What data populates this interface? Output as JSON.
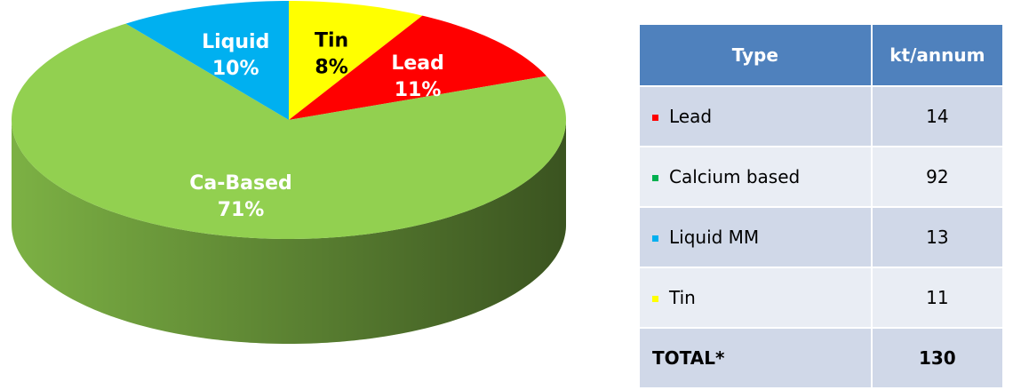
{
  "chart_data": {
    "type": "pie",
    "categories": [
      "Tin",
      "Lead",
      "Ca-Based",
      "Liquid"
    ],
    "values": [
      8,
      11,
      71,
      10
    ],
    "value_labels": [
      "8%",
      "11%",
      "71%",
      "10%"
    ],
    "colors": [
      "#ffff00",
      "#ff0000",
      "#92d050",
      "#00b0f0"
    ]
  },
  "table": {
    "header": [
      "Type",
      "kt/annum"
    ],
    "rows": [
      [
        "Lead",
        "14"
      ],
      [
        "Calcium based",
        "92"
      ],
      [
        "Liquid MM",
        "13"
      ],
      [
        "Tin",
        "11"
      ],
      [
        "TOTAL*",
        "130"
      ]
    ],
    "bullet_colors": [
      "#ff0000",
      "#00b050",
      "#00b0f0",
      "#ffff00"
    ]
  }
}
